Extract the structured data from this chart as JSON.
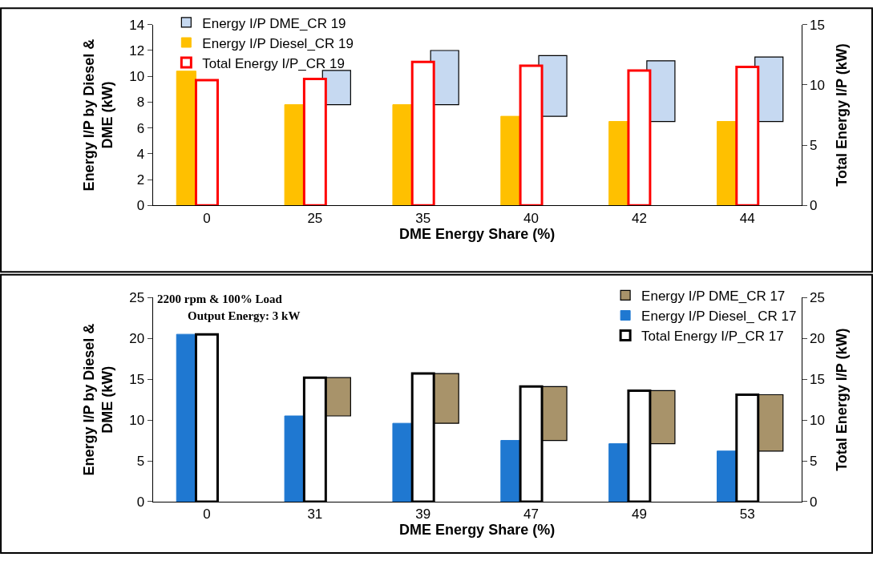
{
  "chart_data": [
    {
      "type": "bar",
      "categories": [
        "0",
        "25",
        "35",
        "40",
        "42",
        "44"
      ],
      "xlabel": "DME Energy Share (%)",
      "ylabel": "Energy I/P by Diesel & DME (kW)",
      "y2label": "Total Energy I/P (kW)",
      "ylim": [
        0,
        14
      ],
      "yticks": [
        0,
        2,
        4,
        6,
        8,
        10,
        12,
        14
      ],
      "y2lim": [
        0,
        15
      ],
      "y2ticks": [
        0,
        5,
        10,
        15
      ],
      "legend": "top left",
      "series": [
        {
          "name": "Energy I/P DME_CR 19",
          "color": "#c6d9f1",
          "values": [
            null,
            2.65,
            4.2,
            4.7,
            4.7,
            5.0
          ],
          "base": [
            null,
            7.8,
            7.8,
            6.9,
            6.5,
            6.5
          ]
        },
        {
          "name": "Energy I/P Diesel_CR 19",
          "color": "#ffc000",
          "values": [
            10.4,
            7.8,
            7.8,
            6.9,
            6.5,
            6.5
          ]
        },
        {
          "name": "Total Energy I/P_CR 19",
          "color": "#ff0000",
          "axis": "y2",
          "values": [
            10.4,
            10.5,
            11.9,
            11.6,
            11.2,
            11.5
          ]
        }
      ]
    },
    {
      "type": "bar",
      "categories": [
        "0",
        "31",
        "39",
        "47",
        "49",
        "53"
      ],
      "xlabel": "DME Energy Share (%)",
      "ylabel": "Energy I/P by Diesel & DME (kW)",
      "y2label": "Total Energy I/P (kW)",
      "ylim": [
        0,
        25
      ],
      "yticks": [
        0,
        5,
        10,
        15,
        20,
        25
      ],
      "y2lim": [
        0,
        25
      ],
      "y2ticks": [
        0,
        5,
        10,
        15,
        20,
        25
      ],
      "legend": "top right",
      "annotations": [
        "2200 rpm & 100% Load",
        "Output Energy: 3 kW"
      ],
      "series": [
        {
          "name": "Energy I/P DME_CR 17",
          "color": "#a8936a",
          "values": [
            null,
            4.7,
            6.1,
            6.6,
            6.5,
            6.9
          ],
          "base": [
            null,
            10.5,
            9.6,
            7.5,
            7.1,
            6.2
          ]
        },
        {
          "name": "Energy I/P Diesel_ CR 17",
          "color": "#1f78d1",
          "values": [
            20.5,
            10.5,
            9.6,
            7.5,
            7.1,
            6.2
          ]
        },
        {
          "name": "Total Energy I/P_CR 17",
          "color": "#000000",
          "axis": "y2",
          "values": [
            20.5,
            15.2,
            15.7,
            14.1,
            13.6,
            13.1
          ]
        }
      ]
    }
  ]
}
